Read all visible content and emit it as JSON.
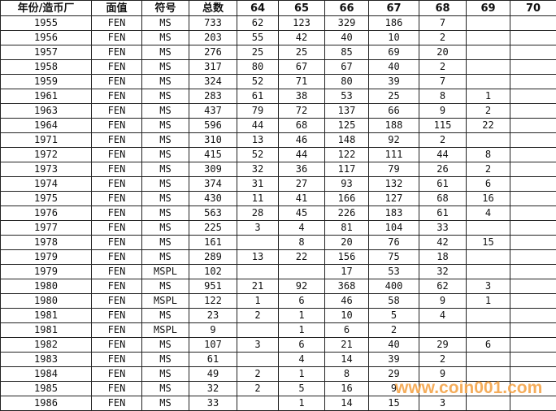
{
  "headers": [
    "年份/造币厂",
    "面值",
    "符号",
    "总数",
    "64",
    "65",
    "66",
    "67",
    "68",
    "69",
    "70"
  ],
  "rows": [
    [
      "1955",
      "FEN",
      "MS",
      "733",
      "62",
      "123",
      "329",
      "186",
      "7",
      "",
      ""
    ],
    [
      "1956",
      "FEN",
      "MS",
      "203",
      "55",
      "42",
      "40",
      "10",
      "2",
      "",
      ""
    ],
    [
      "1957",
      "FEN",
      "MS",
      "276",
      "25",
      "25",
      "85",
      "69",
      "20",
      "",
      ""
    ],
    [
      "1958",
      "FEN",
      "MS",
      "317",
      "80",
      "67",
      "67",
      "40",
      "2",
      "",
      ""
    ],
    [
      "1959",
      "FEN",
      "MS",
      "324",
      "52",
      "71",
      "80",
      "39",
      "7",
      "",
      ""
    ],
    [
      "1961",
      "FEN",
      "MS",
      "283",
      "61",
      "38",
      "53",
      "25",
      "8",
      "1",
      ""
    ],
    [
      "1963",
      "FEN",
      "MS",
      "437",
      "79",
      "72",
      "137",
      "66",
      "9",
      "2",
      ""
    ],
    [
      "1964",
      "FEN",
      "MS",
      "596",
      "44",
      "68",
      "125",
      "188",
      "115",
      "22",
      ""
    ],
    [
      "1971",
      "FEN",
      "MS",
      "310",
      "13",
      "46",
      "148",
      "92",
      "2",
      "",
      ""
    ],
    [
      "1972",
      "FEN",
      "MS",
      "415",
      "52",
      "44",
      "122",
      "111",
      "44",
      "8",
      ""
    ],
    [
      "1973",
      "FEN",
      "MS",
      "309",
      "32",
      "36",
      "117",
      "79",
      "26",
      "2",
      ""
    ],
    [
      "1974",
      "FEN",
      "MS",
      "374",
      "31",
      "27",
      "93",
      "132",
      "61",
      "6",
      ""
    ],
    [
      "1975",
      "FEN",
      "MS",
      "430",
      "11",
      "41",
      "166",
      "127",
      "68",
      "16",
      ""
    ],
    [
      "1976",
      "FEN",
      "MS",
      "563",
      "28",
      "45",
      "226",
      "183",
      "61",
      "4",
      ""
    ],
    [
      "1977",
      "FEN",
      "MS",
      "225",
      "3",
      "4",
      "81",
      "104",
      "33",
      "",
      ""
    ],
    [
      "1978",
      "FEN",
      "MS",
      "161",
      "",
      "8",
      "20",
      "76",
      "42",
      "15",
      ""
    ],
    [
      "1979",
      "FEN",
      "MS",
      "289",
      "13",
      "22",
      "156",
      "75",
      "18",
      "",
      ""
    ],
    [
      "1979",
      "FEN",
      "MSPL",
      "102",
      "",
      "",
      "17",
      "53",
      "32",
      "",
      ""
    ],
    [
      "1980",
      "FEN",
      "MS",
      "951",
      "21",
      "92",
      "368",
      "400",
      "62",
      "3",
      ""
    ],
    [
      "1980",
      "FEN",
      "MSPL",
      "122",
      "1",
      "6",
      "46",
      "58",
      "9",
      "1",
      ""
    ],
    [
      "1981",
      "FEN",
      "MS",
      "23",
      "2",
      "1",
      "10",
      "5",
      "4",
      "",
      ""
    ],
    [
      "1981",
      "FEN",
      "MSPL",
      "9",
      "",
      "1",
      "6",
      "2",
      "",
      "",
      ""
    ],
    [
      "1982",
      "FEN",
      "MS",
      "107",
      "3",
      "6",
      "21",
      "40",
      "29",
      "6",
      ""
    ],
    [
      "1983",
      "FEN",
      "MS",
      "61",
      "",
      "4",
      "14",
      "39",
      "2",
      "",
      ""
    ],
    [
      "1984",
      "FEN",
      "MS",
      "49",
      "2",
      "1",
      "8",
      "29",
      "9",
      "",
      ""
    ],
    [
      "1985",
      "FEN",
      "MS",
      "32",
      "2",
      "5",
      "16",
      "9",
      "",
      "",
      ""
    ],
    [
      "1986",
      "FEN",
      "MS",
      "33",
      "",
      "1",
      "14",
      "15",
      "3",
      "",
      ""
    ]
  ],
  "watermark": "www.coin001.com"
}
